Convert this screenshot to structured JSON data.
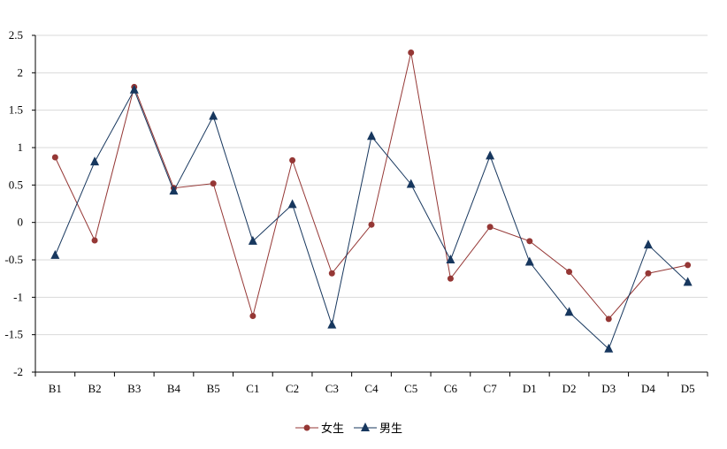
{
  "chart_data": {
    "type": "line",
    "title": "",
    "xlabel": "",
    "ylabel": "",
    "categories": [
      "B1",
      "B2",
      "B3",
      "B4",
      "B5",
      "C1",
      "C2",
      "C3",
      "C4",
      "C5",
      "C6",
      "C7",
      "D1",
      "D2",
      "D3",
      "D4",
      "D5"
    ],
    "ylim": [
      -2,
      2.5
    ],
    "yticks": [
      -2,
      -1.5,
      -1,
      -0.5,
      0,
      0.5,
      1,
      1.5,
      2,
      2.5
    ],
    "ytick_labels": [
      "-2",
      "-1.5",
      "-1",
      "-0.5",
      "0",
      "0.5",
      "1",
      "1.5",
      "2",
      "2.5"
    ],
    "grid": true,
    "legend_position": "bottom",
    "series": [
      {
        "name": "女生",
        "color": "#953735",
        "marker": "circle",
        "values": [
          0.87,
          -0.24,
          1.81,
          0.46,
          0.52,
          -1.25,
          0.83,
          -0.68,
          -0.03,
          2.27,
          -0.75,
          -0.06,
          -0.25,
          -0.66,
          -1.29,
          -0.68,
          -0.57
        ]
      },
      {
        "name": "男生",
        "color": "#17375E",
        "marker": "triangle",
        "values": [
          -0.44,
          0.81,
          1.77,
          0.42,
          1.42,
          -0.25,
          0.24,
          -1.37,
          1.15,
          0.51,
          -0.5,
          0.89,
          -0.53,
          -1.2,
          -1.69,
          -0.3,
          -0.8
        ]
      }
    ]
  }
}
